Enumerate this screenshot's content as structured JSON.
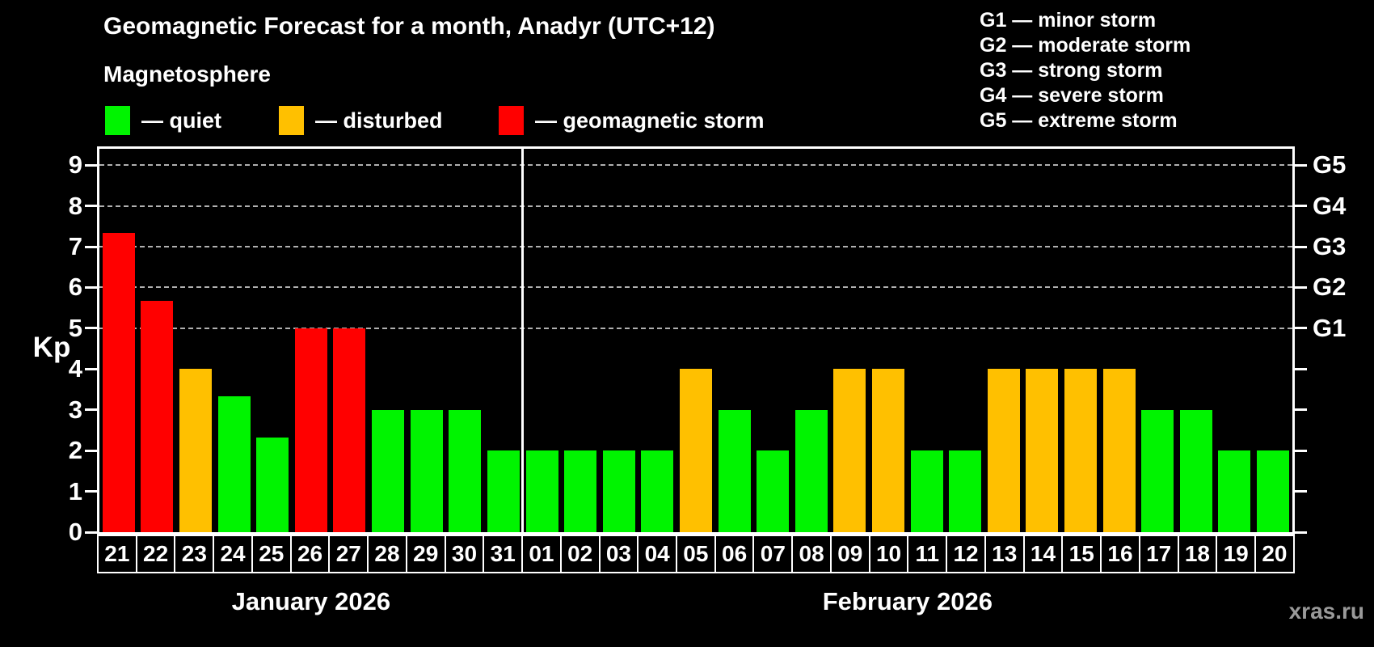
{
  "title": "Geomagnetic Forecast for a month, Anadyr (UTC+12)",
  "subtitle": "Magnetosphere",
  "watermark": "xras.ru",
  "legend": [
    {
      "swatch": "quiet",
      "label": "— quiet"
    },
    {
      "swatch": "disturbed",
      "label": "— disturbed"
    },
    {
      "swatch": "storm",
      "label": "— geomagnetic storm"
    }
  ],
  "g_scale_legend": [
    "G1 — minor storm",
    "G2 — moderate storm",
    "G3 — strong storm",
    "G4 — severe storm",
    "G5 — extreme storm"
  ],
  "chart_data": {
    "type": "bar",
    "ylabel_left": "Kp",
    "ylim": [
      0,
      9.4
    ],
    "grid": "dashed horizontal at G-storm levels",
    "gridlines_kp": [
      5,
      6,
      7,
      8,
      9
    ],
    "y_ticks": [
      0,
      1,
      2,
      3,
      4,
      5,
      6,
      7,
      8,
      9
    ],
    "g_labels": [
      {
        "label": "G1",
        "kp": 5
      },
      {
        "label": "G2",
        "kp": 6
      },
      {
        "label": "G3",
        "kp": 7
      },
      {
        "label": "G4",
        "kp": 8
      },
      {
        "label": "G5",
        "kp": 9
      }
    ],
    "condition_colors": {
      "quiet": "#00f400",
      "disturbed": "#ffc000",
      "storm": "#ff0000"
    },
    "months": [
      {
        "label": "January 2026",
        "days": [
          {
            "date": "21",
            "kp": 7.33,
            "condition": "storm"
          },
          {
            "date": "22",
            "kp": 5.67,
            "condition": "storm"
          },
          {
            "date": "23",
            "kp": 4,
            "condition": "disturbed"
          },
          {
            "date": "24",
            "kp": 3.33,
            "condition": "quiet"
          },
          {
            "date": "25",
            "kp": 2.33,
            "condition": "quiet"
          },
          {
            "date": "26",
            "kp": 5,
            "condition": "storm"
          },
          {
            "date": "27",
            "kp": 5,
            "condition": "storm"
          },
          {
            "date": "28",
            "kp": 3,
            "condition": "quiet"
          },
          {
            "date": "29",
            "kp": 3,
            "condition": "quiet"
          },
          {
            "date": "30",
            "kp": 3,
            "condition": "quiet"
          },
          {
            "date": "31",
            "kp": 2,
            "condition": "quiet"
          }
        ]
      },
      {
        "label": "February 2026",
        "days": [
          {
            "date": "01",
            "kp": 2,
            "condition": "quiet"
          },
          {
            "date": "02",
            "kp": 2,
            "condition": "quiet"
          },
          {
            "date": "03",
            "kp": 2,
            "condition": "quiet"
          },
          {
            "date": "04",
            "kp": 2,
            "condition": "quiet"
          },
          {
            "date": "05",
            "kp": 4,
            "condition": "disturbed"
          },
          {
            "date": "06",
            "kp": 3,
            "condition": "quiet"
          },
          {
            "date": "07",
            "kp": 2,
            "condition": "quiet"
          },
          {
            "date": "08",
            "kp": 3,
            "condition": "quiet"
          },
          {
            "date": "09",
            "kp": 4,
            "condition": "disturbed"
          },
          {
            "date": "10",
            "kp": 4,
            "condition": "disturbed"
          },
          {
            "date": "11",
            "kp": 2,
            "condition": "quiet"
          },
          {
            "date": "12",
            "kp": 2,
            "condition": "quiet"
          },
          {
            "date": "13",
            "kp": 4,
            "condition": "disturbed"
          },
          {
            "date": "14",
            "kp": 4,
            "condition": "disturbed"
          },
          {
            "date": "15",
            "kp": 4,
            "condition": "disturbed"
          },
          {
            "date": "16",
            "kp": 4,
            "condition": "disturbed"
          },
          {
            "date": "17",
            "kp": 3,
            "condition": "quiet"
          },
          {
            "date": "18",
            "kp": 3,
            "condition": "quiet"
          },
          {
            "date": "19",
            "kp": 2,
            "condition": "quiet"
          },
          {
            "date": "20",
            "kp": 2,
            "condition": "quiet"
          }
        ]
      }
    ]
  }
}
